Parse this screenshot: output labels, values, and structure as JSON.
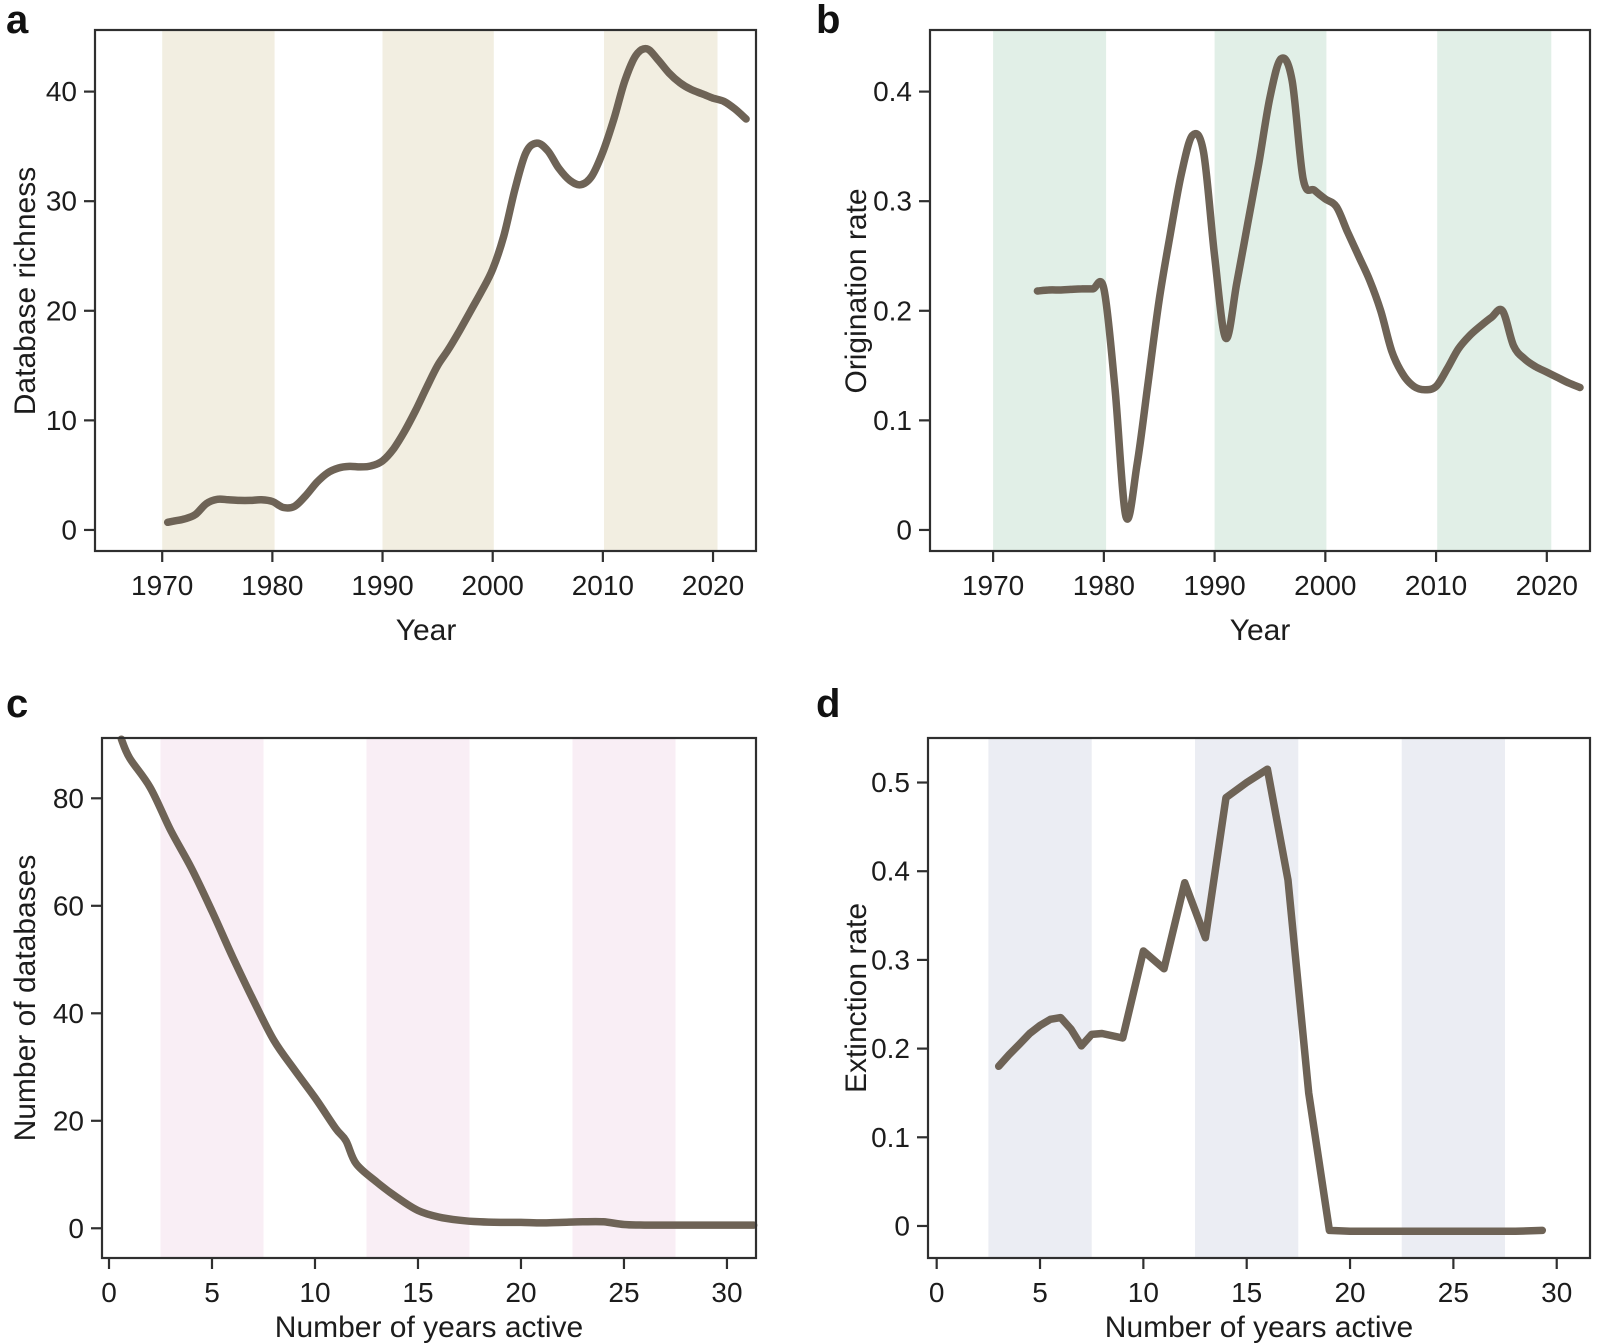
{
  "figure": {
    "background": "#ffffff",
    "axis_color": "#2f2f2f",
    "text_color": "#1c1c1c",
    "curve_color": "#6e6356"
  },
  "chart_data": [
    {
      "id": "a",
      "panel_label": "a",
      "type": "line",
      "xlabel": "Year",
      "ylabel": "Database richness",
      "line_color": "#6e6356",
      "band_color": "#f2eee1",
      "line_width": 7.5,
      "smooth": true,
      "grid": false,
      "legend": "none",
      "xlim": [
        1963.9,
        2023.9
      ],
      "ylim": [
        -1.92,
        45.62
      ],
      "xticks": {
        "values": [
          1970,
          1980,
          1990,
          2000,
          2010,
          2020
        ],
        "labels": [
          "1970",
          "1980",
          "1990",
          "2000",
          "2010",
          "2020"
        ]
      },
      "yticks": {
        "values": [
          0,
          10,
          20,
          30,
          40
        ],
        "labels": [
          "0",
          "10",
          "20",
          "30",
          "40"
        ]
      },
      "bands": [
        [
          1970,
          1980.2
        ],
        [
          1990,
          2000.1
        ],
        [
          2010.1,
          2020.4
        ]
      ],
      "points": [
        [
          1970.5,
          0.7
        ],
        [
          1971,
          0.8
        ],
        [
          1972,
          1.0
        ],
        [
          1973,
          1.4
        ],
        [
          1974,
          2.4
        ],
        [
          1975,
          2.8
        ],
        [
          1976,
          2.75
        ],
        [
          1977,
          2.7
        ],
        [
          1978,
          2.7
        ],
        [
          1979,
          2.75
        ],
        [
          1980,
          2.6
        ],
        [
          1981,
          2.05
        ],
        [
          1982,
          2.15
        ],
        [
          1983,
          3.1
        ],
        [
          1984,
          4.3
        ],
        [
          1985,
          5.2
        ],
        [
          1986,
          5.65
        ],
        [
          1987,
          5.8
        ],
        [
          1988,
          5.75
        ],
        [
          1989,
          5.85
        ],
        [
          1990,
          6.3
        ],
        [
          1991,
          7.4
        ],
        [
          1992,
          9.0
        ],
        [
          1993,
          10.9
        ],
        [
          1994,
          13.0
        ],
        [
          1995,
          15.0
        ],
        [
          1996,
          16.5
        ],
        [
          1997,
          18.2
        ],
        [
          1998,
          20.0
        ],
        [
          1999,
          21.8
        ],
        [
          2000,
          23.8
        ],
        [
          2001,
          26.8
        ],
        [
          2002,
          31.0
        ],
        [
          2003,
          34.4
        ],
        [
          2004,
          35.3
        ],
        [
          2005,
          34.6
        ],
        [
          2006,
          33.0
        ],
        [
          2007,
          31.9
        ],
        [
          2008,
          31.5
        ],
        [
          2009,
          32.3
        ],
        [
          2010,
          34.5
        ],
        [
          2011,
          37.5
        ],
        [
          2012,
          41.0
        ],
        [
          2013,
          43.3
        ],
        [
          2014,
          43.9
        ],
        [
          2015,
          42.9
        ],
        [
          2016,
          41.7
        ],
        [
          2017,
          40.8
        ],
        [
          2018,
          40.2
        ],
        [
          2019,
          39.8
        ],
        [
          2020,
          39.4
        ],
        [
          2021,
          39.1
        ],
        [
          2022,
          38.4
        ],
        [
          2023,
          37.5
        ]
      ]
    },
    {
      "id": "b",
      "panel_label": "b",
      "type": "line",
      "xlabel": "Year",
      "ylabel": "Origination rate",
      "line_color": "#6e6356",
      "band_color": "#e1efe7",
      "line_width": 7.5,
      "smooth": true,
      "grid": false,
      "legend": "none",
      "xlim": [
        1964.3,
        2023.9
      ],
      "ylim": [
        -0.0192,
        0.4562
      ],
      "xticks": {
        "values": [
          1970,
          1980,
          1990,
          2000,
          2010,
          2020
        ],
        "labels": [
          "1970",
          "1980",
          "1990",
          "2000",
          "2010",
          "2020"
        ]
      },
      "yticks": {
        "values": [
          0,
          0.1,
          0.2,
          0.3,
          0.4
        ],
        "labels": [
          "0",
          "0.1",
          "0.2",
          "0.3",
          "0.4"
        ]
      },
      "bands": [
        [
          1970,
          1980.2
        ],
        [
          1990,
          2000.1
        ],
        [
          2010.1,
          2020.4
        ]
      ],
      "points": [
        [
          1974,
          0.218
        ],
        [
          1975,
          0.219
        ],
        [
          1976,
          0.219
        ],
        [
          1977,
          0.2195
        ],
        [
          1978,
          0.22
        ],
        [
          1979,
          0.22
        ],
        [
          1980,
          0.22
        ],
        [
          1981,
          0.13
        ],
        [
          1982,
          0.012
        ],
        [
          1983,
          0.06
        ],
        [
          1984,
          0.135
        ],
        [
          1985,
          0.21
        ],
        [
          1986,
          0.27
        ],
        [
          1987,
          0.325
        ],
        [
          1988,
          0.36
        ],
        [
          1989,
          0.345
        ],
        [
          1990,
          0.25
        ],
        [
          1991,
          0.175
        ],
        [
          1992,
          0.225
        ],
        [
          1993,
          0.28
        ],
        [
          1994,
          0.335
        ],
        [
          1995,
          0.395
        ],
        [
          1996,
          0.43
        ],
        [
          1997,
          0.41
        ],
        [
          1998,
          0.32
        ],
        [
          1999,
          0.31
        ],
        [
          2000,
          0.302
        ],
        [
          2001,
          0.295
        ],
        [
          2002,
          0.272
        ],
        [
          2003,
          0.25
        ],
        [
          2004,
          0.228
        ],
        [
          2005,
          0.2
        ],
        [
          2006,
          0.163
        ],
        [
          2007,
          0.142
        ],
        [
          2008,
          0.131
        ],
        [
          2009,
          0.128
        ],
        [
          2010,
          0.131
        ],
        [
          2011,
          0.147
        ],
        [
          2012,
          0.165
        ],
        [
          2013,
          0.177
        ],
        [
          2014,
          0.186
        ],
        [
          2015,
          0.194
        ],
        [
          2016,
          0.2
        ],
        [
          2017,
          0.168
        ],
        [
          2018,
          0.156
        ],
        [
          2019,
          0.149
        ],
        [
          2020,
          0.144
        ],
        [
          2021,
          0.139
        ],
        [
          2022,
          0.134
        ],
        [
          2023,
          0.13
        ]
      ]
    },
    {
      "id": "c",
      "panel_label": "c",
      "type": "line",
      "xlabel": "Number of years active",
      "ylabel": "Number of databases",
      "line_color": "#6e6356",
      "band_color": "#f9eef5",
      "line_width": 7.5,
      "smooth": true,
      "grid": false,
      "legend": "none",
      "xlim": [
        -0.34,
        31.41
      ],
      "ylim": [
        -5.53,
        91.22
      ],
      "xticks": {
        "values": [
          0,
          5,
          10,
          15,
          20,
          25,
          30
        ],
        "labels": [
          "0",
          "5",
          "10",
          "15",
          "20",
          "25",
          "30"
        ]
      },
      "yticks": {
        "values": [
          0,
          20,
          40,
          60,
          80
        ],
        "labels": [
          "0",
          "20",
          "40",
          "60",
          "80"
        ]
      },
      "bands": [
        [
          2.5,
          7.5
        ],
        [
          12.5,
          17.5
        ],
        [
          22.5,
          27.5
        ]
      ],
      "points": [
        [
          0.6,
          91
        ],
        [
          1,
          87.5
        ],
        [
          2,
          82
        ],
        [
          3,
          74
        ],
        [
          4,
          67
        ],
        [
          5,
          59
        ],
        [
          6,
          50.5
        ],
        [
          7,
          42.5
        ],
        [
          8,
          35
        ],
        [
          9,
          29.5
        ],
        [
          10,
          24.3
        ],
        [
          11,
          18.6
        ],
        [
          11.5,
          16.3
        ],
        [
          12,
          12
        ],
        [
          13,
          8.6
        ],
        [
          14,
          5.7
        ],
        [
          15,
          3.3
        ],
        [
          16,
          2.1
        ],
        [
          17,
          1.5
        ],
        [
          18,
          1.2
        ],
        [
          19,
          1.1
        ],
        [
          20,
          1.1
        ],
        [
          21,
          1.0
        ],
        [
          22,
          1.1
        ],
        [
          23,
          1.2
        ],
        [
          24,
          1.2
        ],
        [
          25,
          0.7
        ],
        [
          26,
          0.6
        ],
        [
          27,
          0.6
        ],
        [
          28,
          0.6
        ],
        [
          29,
          0.6
        ],
        [
          30,
          0.6
        ],
        [
          31.3,
          0.6
        ]
      ]
    },
    {
      "id": "d",
      "panel_label": "d",
      "type": "line",
      "xlabel": "Number of years active",
      "ylabel": "Extinction rate",
      "line_color": "#6e6356",
      "band_color": "#ebedf3",
      "line_width": 7.5,
      "smooth": false,
      "grid": false,
      "legend": "none",
      "xlim": [
        -0.42,
        31.61
      ],
      "ylim": [
        -0.0361,
        0.5502
      ],
      "xticks": {
        "values": [
          0,
          5,
          10,
          15,
          20,
          25,
          30
        ],
        "labels": [
          "0",
          "5",
          "10",
          "15",
          "20",
          "25",
          "30"
        ]
      },
      "yticks": {
        "values": [
          0,
          0.1,
          0.2,
          0.3,
          0.4,
          0.5
        ],
        "labels": [
          "0",
          "0.1",
          "0.2",
          "0.3",
          "0.4",
          "0.5"
        ]
      },
      "bands": [
        [
          2.5,
          7.5
        ],
        [
          12.5,
          17.5
        ],
        [
          22.5,
          27.5
        ]
      ],
      "points": [
        [
          3,
          0.18
        ],
        [
          3.5,
          0.193
        ],
        [
          4,
          0.205
        ],
        [
          4.5,
          0.217
        ],
        [
          5,
          0.226
        ],
        [
          5.5,
          0.233
        ],
        [
          6,
          0.235
        ],
        [
          6.5,
          0.222
        ],
        [
          7,
          0.203
        ],
        [
          7.5,
          0.216
        ],
        [
          8,
          0.217
        ],
        [
          9,
          0.212
        ],
        [
          10,
          0.31
        ],
        [
          11,
          0.29
        ],
        [
          12,
          0.387
        ],
        [
          13,
          0.325
        ],
        [
          14,
          0.483
        ],
        [
          15,
          0.5
        ],
        [
          16,
          0.515
        ],
        [
          17,
          0.39
        ],
        [
          18,
          0.15
        ],
        [
          19,
          -0.005
        ],
        [
          20,
          -0.006
        ],
        [
          21,
          -0.006
        ],
        [
          22,
          -0.006
        ],
        [
          23,
          -0.006
        ],
        [
          24,
          -0.006
        ],
        [
          25,
          -0.006
        ],
        [
          26,
          -0.006
        ],
        [
          27,
          -0.006
        ],
        [
          28,
          -0.006
        ],
        [
          29.3,
          -0.005
        ]
      ]
    }
  ]
}
